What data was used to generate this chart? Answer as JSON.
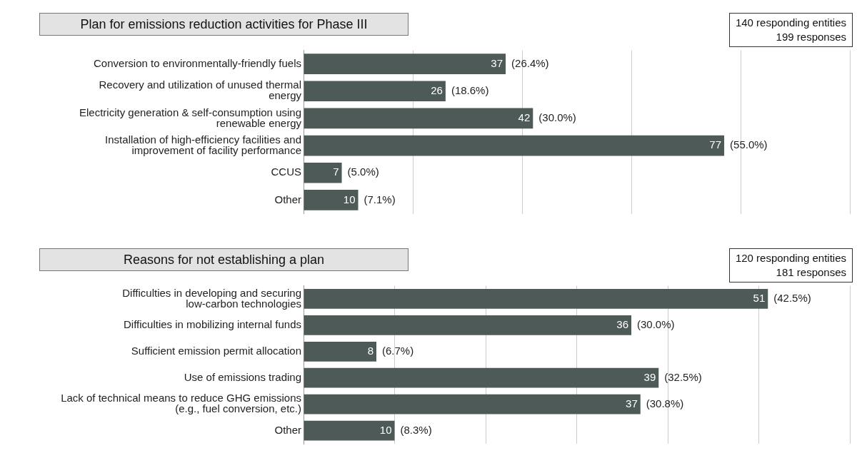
{
  "chart_data": [
    {
      "type": "bar",
      "orientation": "horizontal",
      "title": "Plan for emissions reduction activities for Phase III",
      "categories": [
        "Conversion to environmentally-friendly fuels",
        "Recovery and utilization of unused thermal energy",
        "Electricity generation & self-consumption using renewable energy",
        "Installation of high-efficiency facilities and improvement of facility performance",
        "CCUS",
        "Other"
      ],
      "values": [
        37,
        26,
        42,
        77,
        7,
        10
      ],
      "color": "#4d5a58",
      "xlim": [
        0,
        100
      ],
      "xticks": [
        {
          "value": 0,
          "label": null
        },
        {
          "value": 20,
          "label": null
        },
        {
          "value": 40,
          "label": null
        },
        {
          "value": 60,
          "label": null
        },
        {
          "value": 80,
          "label": null
        },
        {
          "value": 100,
          "label": null
        }
      ],
      "grid": "x",
      "tick_labels": "y",
      "data_labels": true,
      "annotations": [
        {
          "text": "(26.4%)",
          "x": 37,
          "y": "Conversion to environmentally-friendly fuels"
        },
        {
          "text": "(18.6%)",
          "x": 26,
          "y": "Recovery and utilization of unused thermal energy"
        },
        {
          "text": "(30.0%)",
          "x": 42,
          "y": "Electricity generation & self-consumption using renewable energy"
        },
        {
          "text": "(55.0%)",
          "x": 77,
          "y": "Installation of high-efficiency facilities and improvement of facility performance"
        },
        {
          "text": "(5.0%)",
          "x": 7,
          "y": "CCUS"
        },
        {
          "text": "(7.1%)",
          "x": 10,
          "y": "Other"
        },
        "140 responding entities",
        "199 responses"
      ]
    },
    {
      "type": "bar",
      "orientation": "horizontal",
      "title": "Reasons for not establishing a plan",
      "categories": [
        "Difficulties in developing and securing low-carbon technologies",
        "Difficulties in mobilizing internal funds",
        "Sufficient emission permit allocation",
        "Use of emissions trading",
        "Lack of technical means to reduce GHG emissions (e.g., fuel conversion, etc.)",
        "Other"
      ],
      "values": [
        51,
        36,
        8,
        39,
        37,
        10
      ],
      "color": "#4d5a58",
      "xlim": [
        0,
        60
      ],
      "xticks": [
        {
          "value": 0,
          "label": null
        },
        {
          "value": 10,
          "label": null
        },
        {
          "value": 20,
          "label": null
        },
        {
          "value": 30,
          "label": null
        },
        {
          "value": 40,
          "label": null
        },
        {
          "value": 50,
          "label": null
        },
        {
          "value": 60,
          "label": null
        }
      ],
      "grid": "x",
      "tick_labels": "y",
      "data_labels": true,
      "annotations": [
        {
          "text": "(42.5%)",
          "x": 51,
          "y": "Difficulties in developing and securing low-carbon technologies"
        },
        {
          "text": "(30.0%)",
          "x": 36,
          "y": "Difficulties in mobilizing internal funds"
        },
        {
          "text": "(6.7%)",
          "x": 8,
          "y": "Sufficient emission permit allocation"
        },
        {
          "text": "(32.5%)",
          "x": 39,
          "y": "Use of emissions trading"
        },
        {
          "text": "(30.8%)",
          "x": 37,
          "y": "Lack of technical means to reduce GHG emissions (e.g., fuel conversion, etc.)"
        },
        {
          "text": "(8.3%)",
          "x": 10,
          "y": "Other"
        },
        "120 responding entities",
        "181 responses"
      ]
    }
  ]
}
